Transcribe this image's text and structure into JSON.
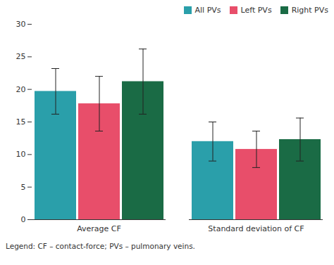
{
  "chart_data": {
    "type": "bar",
    "categories": [
      "Average CF",
      "Standard deviation of CF"
    ],
    "series": [
      {
        "name": "All PVs",
        "color": "#2a9faa",
        "values": [
          19.7,
          12.0
        ],
        "errors": [
          3.5,
          3.0
        ]
      },
      {
        "name": "Left PVs",
        "color": "#e84e6a",
        "values": [
          17.8,
          10.8
        ],
        "errors": [
          4.2,
          2.8
        ]
      },
      {
        "name": "Right PVs",
        "color": "#1a6b45",
        "values": [
          21.2,
          12.3
        ],
        "errors": [
          5.0,
          3.3
        ]
      }
    ],
    "ylim": [
      0,
      30
    ],
    "yticks": [
      0,
      5,
      10,
      15,
      20,
      25,
      30
    ],
    "grid": false,
    "legend": "upper right",
    "caption": "Legend: CF – contact-force; PVs – pulmonary veins."
  }
}
